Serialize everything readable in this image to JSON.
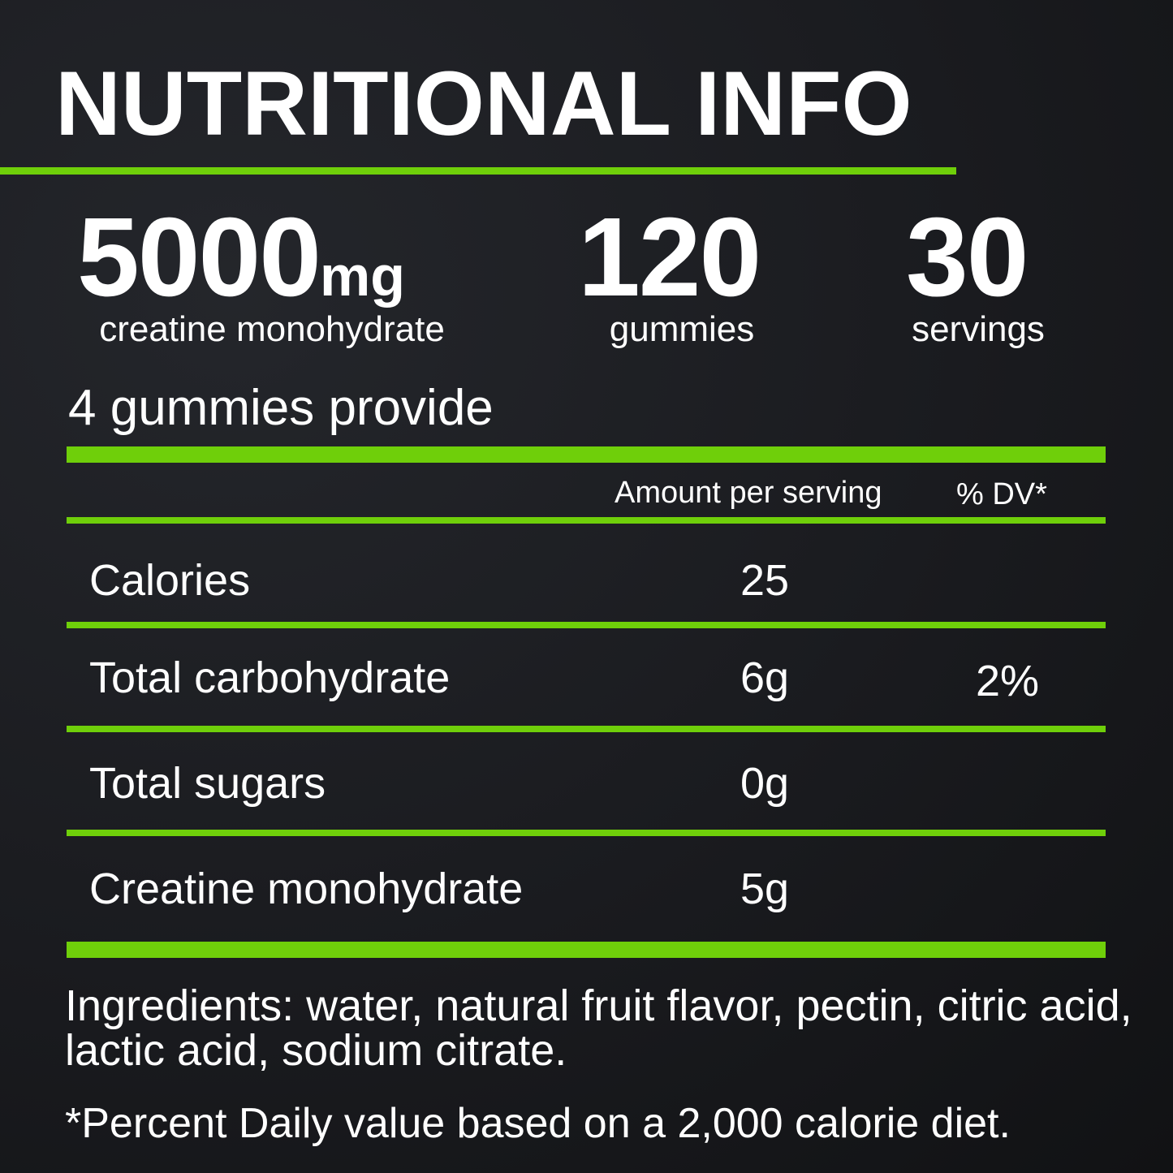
{
  "title": "NUTRITIONAL INFO",
  "stats": [
    {
      "value": "5000",
      "unit": "mg",
      "label": "creatine monohydrate"
    },
    {
      "value": "120",
      "label": "gummies"
    },
    {
      "value": "30",
      "label": "servings"
    }
  ],
  "serving_text": "4 gummies provide",
  "table": {
    "headers": {
      "amount": "Amount per serving",
      "dv": "% DV*"
    },
    "rows": [
      {
        "name": "Calories",
        "amount": "25",
        "dv": ""
      },
      {
        "name": "Total carbohydrate",
        "amount": "6g",
        "dv": "2%"
      },
      {
        "name": "Total sugars",
        "amount": "0g",
        "dv": ""
      },
      {
        "name": "Creatine monohydrate",
        "amount": "5g",
        "dv": ""
      }
    ]
  },
  "ingredients": "Ingredients: water, natural fruit flavor, pectin, citric acid, lactic acid, sodium citrate.",
  "footnote": "*Percent Daily value based on a 2,000 calorie diet.",
  "colors": {
    "accent": "#6fcf0a",
    "background": "#1a1b1f",
    "text": "#ffffff"
  }
}
